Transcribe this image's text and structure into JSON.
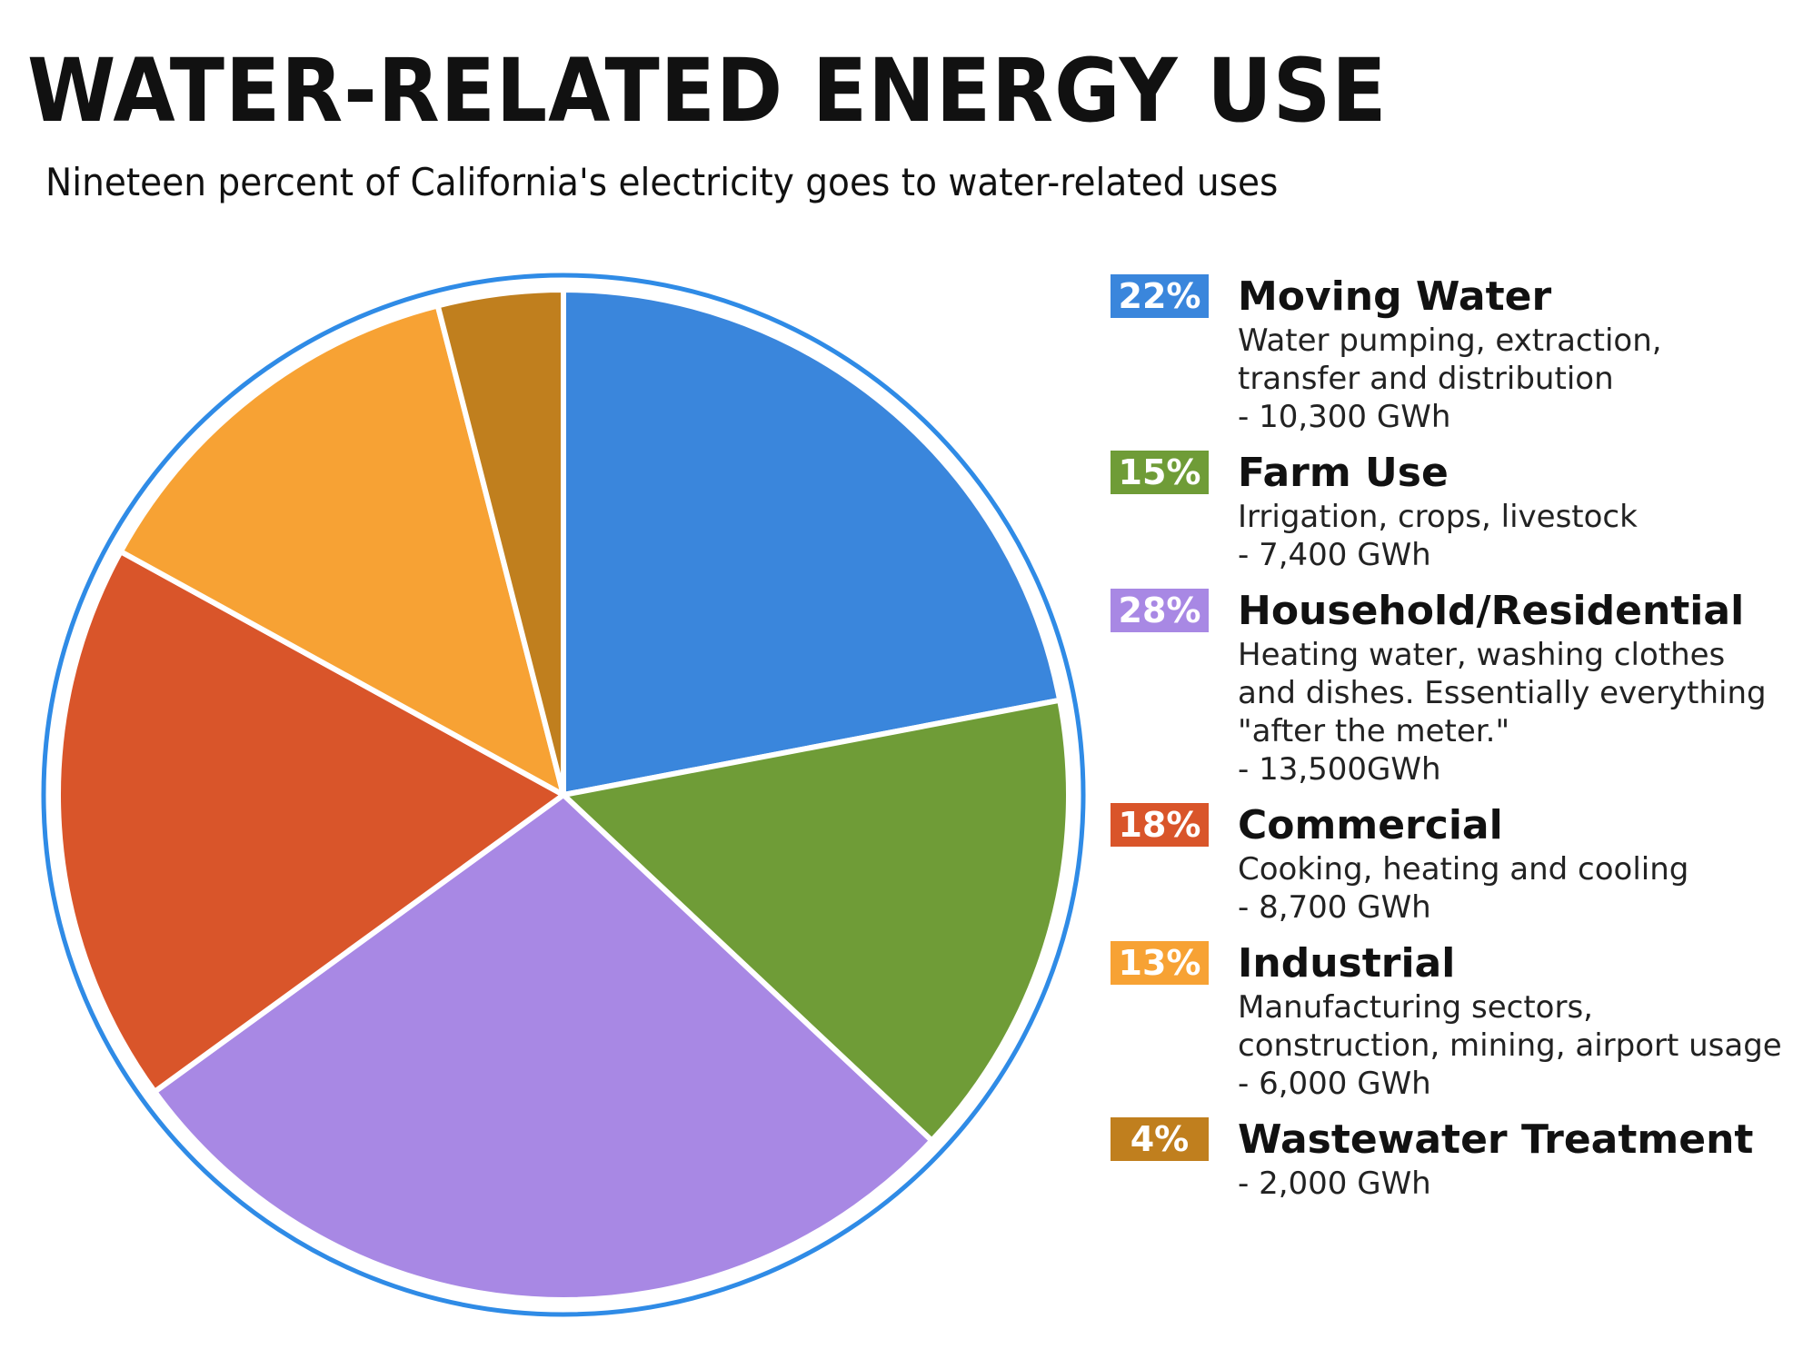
{
  "header": {
    "title": "WATER-RELATED ENERGY USE",
    "subtitle": "Nineteen percent of California's electricity goes to water-related uses"
  },
  "legend": [
    {
      "pct": "22%",
      "name": "Moving Water",
      "desc": "Water pumping, extraction, transfer and distribution",
      "value": "- 10,300 GWh",
      "color": "#3a86dc"
    },
    {
      "pct": "15%",
      "name": "Farm Use",
      "desc": "Irrigation, crops, livestock",
      "value": "- 7,400 GWh",
      "color": "#6f9c37"
    },
    {
      "pct": "28%",
      "name": "Household/Residential",
      "desc": "Heating water, washing clothes and dishes. Essentially everything \"after the meter.\"",
      "value": "- 13,500GWh",
      "color": "#a888e4"
    },
    {
      "pct": "18%",
      "name": "Commercial",
      "desc": "Cooking, heating and cooling",
      "value": "- 8,700 GWh",
      "color": "#d9552a"
    },
    {
      "pct": "13%",
      "name": "Industrial",
      "desc": "Manufacturing sectors, construction, mining, airport usage",
      "value": "- 6,000 GWh",
      "color": "#f7a234"
    },
    {
      "pct": "4%",
      "name": "Wastewater Treatment",
      "desc": "",
      "value": "- 2,000 GWh",
      "color": "#c07f1e"
    }
  ],
  "chart_data": {
    "type": "pie",
    "title": "WATER-RELATED ENERGY USE",
    "subtitle": "Nineteen percent of California's electricity goes to water-related uses",
    "categories": [
      "Moving Water",
      "Farm Use",
      "Household/Residential",
      "Commercial",
      "Industrial",
      "Wastewater Treatment"
    ],
    "values": [
      22,
      15,
      28,
      18,
      13,
      4
    ],
    "units": "percent",
    "energy_gwh": [
      10300,
      7400,
      13500,
      8700,
      6000,
      2000
    ],
    "descriptions": [
      "Water pumping, extraction, transfer and distribution",
      "Irrigation, crops, livestock",
      "Heating water, washing clothes and dishes. Essentially everything \"after the meter.\"",
      "Cooking, heating and cooling",
      "Manufacturing sectors, construction, mining, airport usage",
      ""
    ],
    "colors": [
      "#3a86dc",
      "#6f9c37",
      "#a888e4",
      "#d9552a",
      "#f7a234",
      "#c07f1e"
    ],
    "start_angle_deg": 0,
    "direction": "clockwise",
    "legend_position": "right",
    "outline_color": "#2f8be6"
  }
}
